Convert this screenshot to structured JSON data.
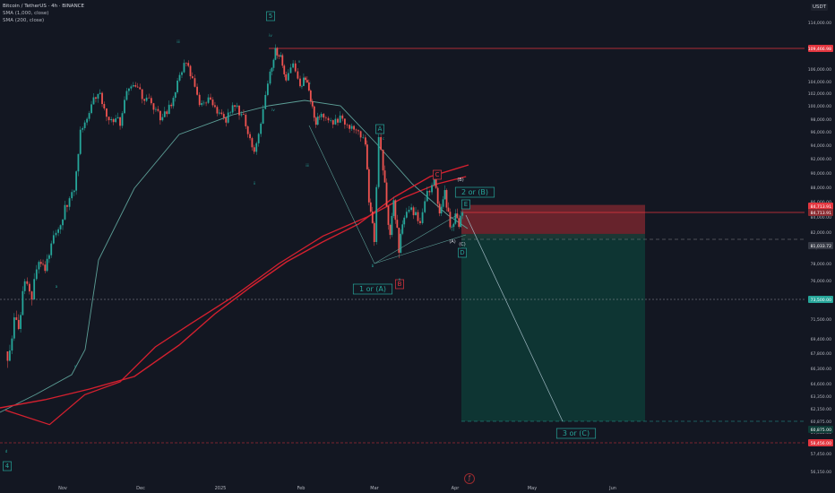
{
  "header": {
    "title": "Bitcoin / TetherUS · 4h · BINANCE",
    "sma1": "SMA (1,000, close)",
    "sma2": "SMA (200, close)"
  },
  "currency_label": "USDT",
  "colors": {
    "background": "#131722",
    "candle_up": "#26a69a",
    "candle_down": "#ef5350",
    "sma_1000": "#d4202f",
    "sma_200": "#5c9e96",
    "label_green": "#26a69a",
    "label_red": "#e3363f",
    "risk_zone": "#8b2a30",
    "reward_zone": "#0e3b36"
  },
  "chart_data": {
    "type": "candlestick",
    "symbol": "BTCUSDT",
    "timeframe": "4h",
    "x_ticks": [
      "Nov",
      "Dec",
      "2025",
      "Feb",
      "Mar",
      "Apr",
      "May",
      "Jun"
    ],
    "y_ticks": [
      "114,000.00",
      "109,466.98",
      "106,000.00",
      "104,000.00",
      "102,000.00",
      "100,000.00",
      "98,000.00",
      "96,000.00",
      "94,000.00",
      "92,000.00",
      "90,000.00",
      "88,000.00",
      "86,000.00",
      "84,000.00",
      "82,000.00",
      "80,000.00",
      "78,000.00",
      "76,000.00",
      "73,500.00",
      "71,500.00",
      "69,400.00",
      "67,800.00",
      "66,300.00",
      "64,600.00",
      "63,350.00",
      "62,150.00",
      "60,875.00",
      "59,650.00",
      "58,450.00",
      "57,450.00",
      "56,150.00"
    ],
    "price_labels": {
      "level_top": "109,466.98",
      "level_current": "84,713.91",
      "level_entry": "84,713.91",
      "level_stop_low": "81,033.72",
      "level_target": "73,500.00",
      "level_low": "60,875.00",
      "level_bottom": "58,456.00"
    },
    "price_path": [
      [
        0,
        68000
      ],
      [
        5,
        67500
      ],
      [
        10,
        71500
      ],
      [
        15,
        70000
      ],
      [
        22,
        76000
      ],
      [
        30,
        74000
      ],
      [
        38,
        78500
      ],
      [
        45,
        77000
      ],
      [
        52,
        80500
      ],
      [
        60,
        82500
      ],
      [
        70,
        86000
      ],
      [
        78,
        88000
      ],
      [
        85,
        96000
      ],
      [
        95,
        99000
      ],
      [
        105,
        102500
      ],
      [
        112,
        99500
      ],
      [
        120,
        98000
      ],
      [
        130,
        97500
      ],
      [
        140,
        103500
      ],
      [
        150,
        102500
      ],
      [
        160,
        101000
      ],
      [
        168,
        100000
      ],
      [
        178,
        98000
      ],
      [
        188,
        100000
      ],
      [
        195,
        104000
      ],
      [
        205,
        107500
      ],
      [
        212,
        104000
      ],
      [
        220,
        100000
      ],
      [
        230,
        101000
      ],
      [
        240,
        99000
      ],
      [
        250,
        98000
      ],
      [
        260,
        100500
      ],
      [
        270,
        98000
      ],
      [
        282,
        93000
      ],
      [
        292,
        99000
      ],
      [
        300,
        105500
      ],
      [
        306,
        109000
      ],
      [
        312,
        108000
      ],
      [
        318,
        104000
      ],
      [
        326,
        106500
      ],
      [
        334,
        103000
      ],
      [
        340,
        104500
      ],
      [
        346,
        101000
      ],
      [
        352,
        97500
      ],
      [
        358,
        99000
      ],
      [
        366,
        98000
      ],
      [
        374,
        97500
      ],
      [
        382,
        98200
      ],
      [
        390,
        97000
      ],
      [
        400,
        96500
      ],
      [
        408,
        94000
      ],
      [
        412,
        86000
      ],
      [
        418,
        81000
      ],
      [
        423,
        95000
      ],
      [
        428,
        91000
      ],
      [
        432,
        85000
      ],
      [
        436,
        82000
      ],
      [
        440,
        86000
      ],
      [
        446,
        80000
      ],
      [
        452,
        84000
      ],
      [
        460,
        85000
      ],
      [
        470,
        83000
      ],
      [
        478,
        87000
      ],
      [
        486,
        89000
      ],
      [
        492,
        84500
      ],
      [
        498,
        87000
      ],
      [
        504,
        82500
      ],
      [
        510,
        84000
      ],
      [
        514,
        82500
      ],
      [
        518,
        84713
      ]
    ],
    "sma_1000_path": [
      [
        0,
        80500
      ],
      [
        40,
        76000
      ],
      [
        90,
        67500
      ],
      [
        150,
        64500
      ],
      [
        200,
        62000
      ],
      [
        250,
        62500
      ],
      [
        300,
        64000
      ],
      [
        350,
        69000
      ],
      [
        400,
        76000
      ],
      [
        440,
        80000
      ],
      [
        480,
        85500
      ],
      [
        520,
        88000
      ]
    ],
    "sma_200_path": [
      [
        0,
        62000
      ],
      [
        50,
        60500
      ],
      [
        90,
        63500
      ],
      [
        130,
        64800
      ],
      [
        170,
        68500
      ],
      [
        210,
        71000
      ],
      [
        260,
        74000
      ],
      [
        310,
        78000
      ],
      [
        360,
        81500
      ],
      [
        410,
        84000
      ],
      [
        450,
        86500
      ],
      [
        490,
        88500
      ],
      [
        522,
        89500
      ]
    ],
    "position": {
      "type": "short",
      "entry": 84713.91,
      "stop": 86800,
      "target": 60875
    },
    "wave_labels": [
      {
        "text": "5",
        "color": "green"
      },
      {
        "text": "A",
        "color": "green"
      },
      {
        "text": "C",
        "color": "red"
      },
      {
        "text": "B",
        "color": "red"
      },
      {
        "text": "1 or (A)",
        "color": "green"
      },
      {
        "text": "2 or (B)",
        "color": "green"
      },
      {
        "text": "E",
        "color": "green"
      },
      {
        "text": "D",
        "color": "green"
      },
      {
        "text": "3 or (C)",
        "color": "green"
      },
      {
        "text": "4",
        "color": "green"
      },
      {
        "text": "(B)",
        "color": "white"
      },
      {
        "text": "(A)",
        "color": "white"
      },
      {
        "text": "(C)",
        "color": "white"
      }
    ],
    "small_wave_labels": [
      "iii",
      "iv",
      "v",
      "i",
      "ii",
      "iii",
      "iv",
      "v",
      "a",
      "b",
      "c",
      "d",
      "e"
    ]
  }
}
